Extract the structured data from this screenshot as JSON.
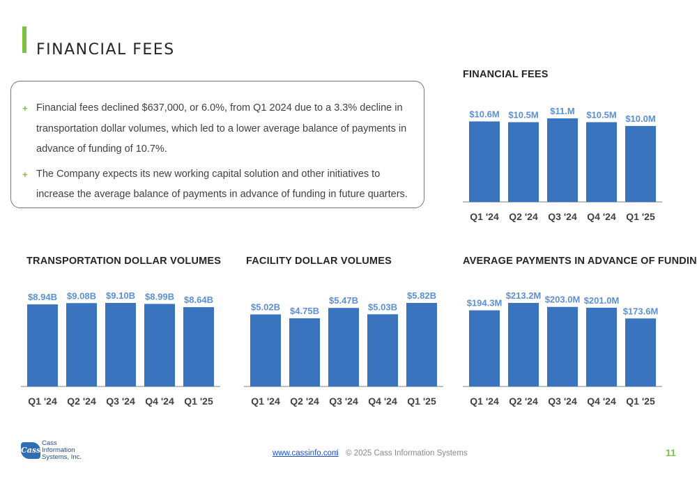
{
  "header": {
    "title": "FINANCIAL FEES"
  },
  "callout": {
    "bullets": [
      "Financial fees declined $637,000, or 6.0%, from Q1 2024 due to a 3.3% decline in transportation dollar volumes, which led to a lower average balance of payments in advance of funding of 10.7%.",
      "The Company expects its new working capital solution and other initiatives to increase the average balance of payments in advance of funding in future quarters."
    ]
  },
  "colors": {
    "bar": "#3a74bf",
    "label": "#5b8fd6",
    "accent": "#7dc142",
    "axis": "#7f7f7f"
  },
  "chart_data": [
    {
      "type": "bar",
      "title": "FINANCIAL FEES",
      "categories": [
        "Q1 '24",
        "Q2 '24",
        "Q3 '24",
        "Q4 '24",
        "Q1 '25"
      ],
      "values": [
        10.6,
        10.5,
        11.0,
        10.5,
        10.0
      ],
      "data_labels": [
        "$10.6M",
        "$10.5M",
        "$11.M",
        "$10.5M",
        "$10.0M"
      ],
      "ylim": [
        0,
        11.0
      ]
    },
    {
      "type": "bar",
      "title": "TRANSPORTATION DOLLAR VOLUMES",
      "categories": [
        "Q1 '24",
        "Q2 '24",
        "Q3 '24",
        "Q4 '24",
        "Q1 '25"
      ],
      "values": [
        8.94,
        9.08,
        9.1,
        8.99,
        8.64
      ],
      "data_labels": [
        "$8.94B",
        "$9.08B",
        "$9.10B",
        "$8.99B",
        "$8.64B"
      ],
      "ylim": [
        0,
        9.1
      ]
    },
    {
      "type": "bar",
      "title": "FACILITY DOLLAR VOLUMES",
      "categories": [
        "Q1 '24",
        "Q2 '24",
        "Q3 '24",
        "Q4 '24",
        "Q1 '25"
      ],
      "values": [
        5.02,
        4.75,
        5.47,
        5.03,
        5.82
      ],
      "data_labels": [
        "$5.02B",
        "$4.75B",
        "$5.47B",
        "$5.03B",
        "$5.82B"
      ],
      "ylim": [
        0,
        5.82
      ]
    },
    {
      "type": "bar",
      "title": "AVERAGE PAYMENTS IN ADVANCE OF FUNDING",
      "categories": [
        "Q1 '24",
        "Q2 '24",
        "Q3 '24",
        "Q4 '24",
        "Q1 '25"
      ],
      "values": [
        194.3,
        213.2,
        203.0,
        201.0,
        173.6
      ],
      "data_labels": [
        "$194.3M",
        "$213.2M",
        "$203.0M",
        "$201.0M",
        "$173.6M"
      ],
      "ylim": [
        0,
        213.2
      ]
    }
  ],
  "footer": {
    "link": "www.cassinfo.com",
    "separator": "/",
    "copyright": "© 2025 Cass Information Systems",
    "page_number": "11",
    "logo_mark": "Cass",
    "logo_lines": [
      "Cass",
      "Information",
      "Systems, Inc."
    ]
  }
}
